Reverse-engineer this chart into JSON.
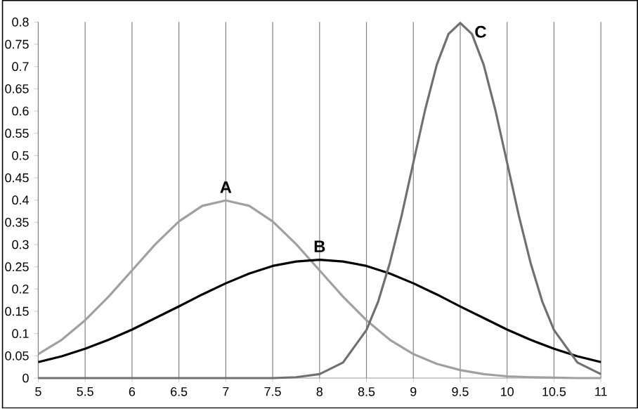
{
  "chart_data": {
    "type": "line",
    "xlim": [
      5,
      11
    ],
    "xticks": [
      5,
      5.5,
      6,
      6.5,
      7,
      7.5,
      8,
      8.5,
      9,
      9.5,
      10,
      10.5,
      11
    ],
    "ylim": [
      0,
      0.8
    ],
    "yticks": [
      0,
      0.05,
      0.1,
      0.15,
      0.2,
      0.25,
      0.3,
      0.35,
      0.4,
      0.45,
      0.5,
      0.55,
      0.6,
      0.65,
      0.7,
      0.75,
      0.8
    ],
    "grid": "x",
    "marker": "none",
    "line_style": "solid",
    "series": [
      {
        "name": "A",
        "color": "#a0a0a0",
        "x": [
          5,
          5.25,
          5.5,
          5.75,
          6,
          6.25,
          6.5,
          6.75,
          7,
          7.25,
          7.5,
          7.75,
          8,
          8.25,
          8.5,
          8.75,
          9,
          9.25,
          9.5,
          9.75,
          10,
          10.25,
          10.5,
          10.75,
          11
        ],
        "values": [
          0.054,
          0.086,
          0.13,
          0.183,
          0.242,
          0.301,
          0.352,
          0.387,
          0.399,
          0.387,
          0.352,
          0.301,
          0.242,
          0.183,
          0.13,
          0.086,
          0.054,
          0.032,
          0.018,
          0.009,
          0.004,
          0.002,
          0.001,
          0,
          0
        ]
      },
      {
        "name": "B",
        "color": "#000000",
        "x": [
          5,
          5.25,
          5.5,
          5.75,
          6,
          6.25,
          6.5,
          6.75,
          7,
          7.25,
          7.5,
          7.75,
          8,
          8.25,
          8.5,
          8.75,
          9,
          9.25,
          9.5,
          9.75,
          10,
          10.25,
          10.5,
          10.75,
          11
        ],
        "values": [
          0.036,
          0.049,
          0.066,
          0.086,
          0.109,
          0.135,
          0.161,
          0.188,
          0.213,
          0.235,
          0.252,
          0.262,
          0.266,
          0.262,
          0.252,
          0.235,
          0.213,
          0.188,
          0.161,
          0.135,
          0.109,
          0.086,
          0.066,
          0.049,
          0.036
        ]
      },
      {
        "name": "C",
        "color": "#707070",
        "x": [
          5,
          6,
          7,
          7.5,
          7.75,
          8,
          8.25,
          8.5,
          8.625,
          8.75,
          8.875,
          9,
          9.125,
          9.25,
          9.375,
          9.5,
          9.625,
          9.75,
          9.875,
          10,
          10.125,
          10.25,
          10.375,
          10.5,
          10.75,
          11
        ],
        "values": [
          0,
          0,
          0,
          0,
          0.002,
          0.009,
          0.035,
          0.108,
          0.172,
          0.259,
          0.365,
          0.484,
          0.602,
          0.704,
          0.773,
          0.798,
          0.773,
          0.704,
          0.602,
          0.484,
          0.365,
          0.259,
          0.172,
          0.108,
          0.035,
          0.009
        ]
      }
    ]
  }
}
